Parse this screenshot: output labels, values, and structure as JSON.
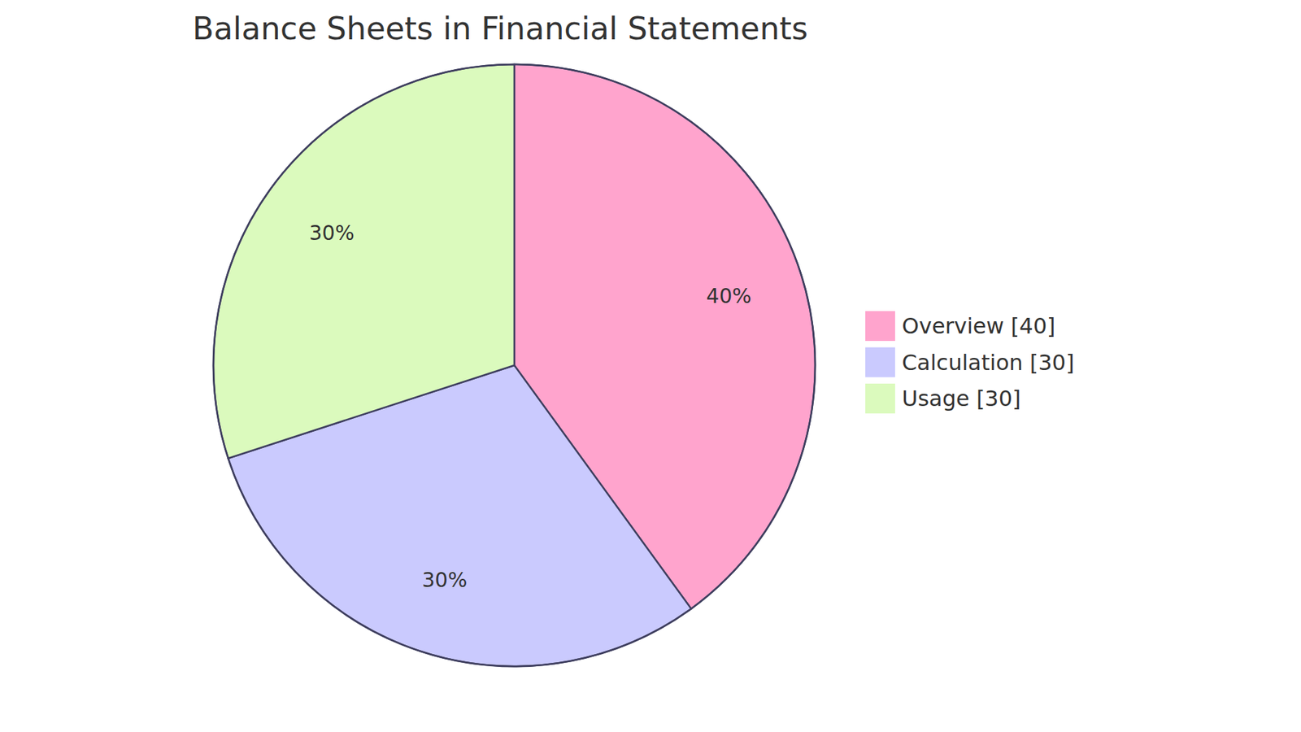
{
  "chart_data": {
    "type": "pie",
    "title": "Balance Sheets in Financial Statements",
    "categories": [
      "Overview",
      "Calculation",
      "Usage"
    ],
    "values": [
      40,
      30,
      30
    ],
    "value_labels": [
      "40%",
      "30%",
      "30%"
    ],
    "legend_labels": [
      "Overview [40]",
      "Calculation [30]",
      "Usage [30]"
    ],
    "colors": [
      "#ffa4cd",
      "#cacafe",
      "#dbfabd"
    ],
    "data_labels": true,
    "legend": "right"
  }
}
